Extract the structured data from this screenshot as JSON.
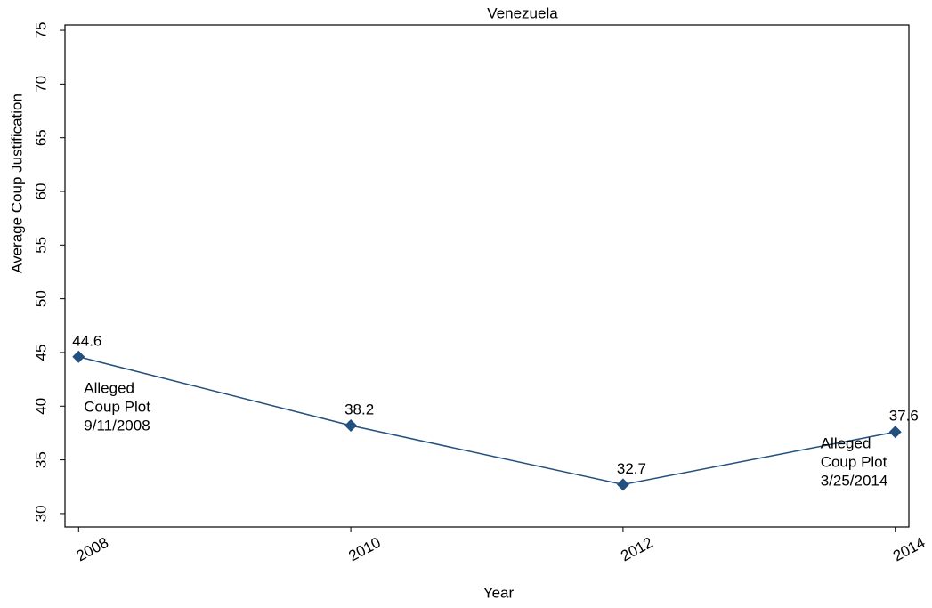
{
  "chart_data": {
    "type": "line",
    "title": "Venezuela",
    "x_label": "Year",
    "y_label": "Average Coup Justification",
    "x": [
      2008,
      2010,
      2012,
      2014
    ],
    "series": [
      {
        "name": "Average Coup Justification",
        "color": "#23507e",
        "values": [
          44.6,
          38.2,
          32.7,
          37.6
        ]
      }
    ],
    "xlim": [
      2007.9,
      2014.1
    ],
    "xticks": [
      2008,
      2010,
      2012,
      2014
    ],
    "ylim": [
      28.75,
      75.5
    ],
    "yticks": [
      30,
      35,
      40,
      45,
      50,
      55,
      60,
      65,
      70,
      75
    ],
    "grid": false,
    "annotations": [
      {
        "lines": [
          "Alleged",
          "Coup Plot",
          "9/11/2008"
        ]
      },
      {
        "lines": [
          "Alleged",
          "Coup Plot",
          "3/25/2014"
        ]
      }
    ]
  }
}
